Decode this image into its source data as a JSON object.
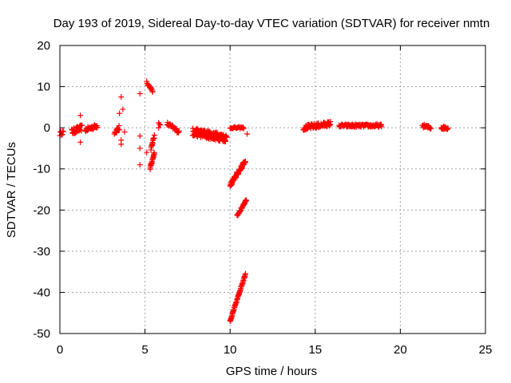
{
  "chart_data": {
    "type": "scatter",
    "title": "Day 193 of 2019, Sidereal Day-to-day VTEC variation (SDTVAR) for receiver nmtn",
    "xlabel": "GPS time / hours",
    "ylabel": "SDTVAR / TECUs",
    "xlim": [
      0,
      25
    ],
    "ylim": [
      -50,
      20
    ],
    "xticks": [
      0,
      5,
      10,
      15,
      20,
      25
    ],
    "yticks": [
      -50,
      -40,
      -30,
      -20,
      -10,
      0,
      10,
      20
    ],
    "xtick_labels": [
      "0",
      "5",
      "10",
      "15",
      "20",
      "25"
    ],
    "ytick_labels": [
      "-50",
      "-40",
      "-30",
      "-20",
      "-10",
      "0",
      "10",
      "20"
    ],
    "grid": true,
    "marker": "plus",
    "color": "#ff0000",
    "segments": [
      {
        "x0": 0.0,
        "x1": 0.2,
        "y0": -1.5,
        "y1": -1.0,
        "n": 8,
        "jitter": 1.0
      },
      {
        "x0": 0.7,
        "x1": 1.3,
        "y0": -1.0,
        "y1": 0.0,
        "n": 30,
        "jitter": 1.5
      },
      {
        "x0": 1.5,
        "x1": 2.2,
        "y0": -0.5,
        "y1": 0.5,
        "n": 30,
        "jitter": 1.0
      },
      {
        "x0": 3.2,
        "x1": 3.5,
        "y0": -1.0,
        "y1": 0.0,
        "n": 12,
        "jitter": 1.5
      },
      {
        "x0": 5.3,
        "x1": 5.55,
        "y0": -10.0,
        "y1": -6.0,
        "n": 20,
        "jitter": 0.8
      },
      {
        "x0": 5.35,
        "x1": 5.55,
        "y0": -5.0,
        "y1": -2.0,
        "n": 15,
        "jitter": 0.8
      },
      {
        "x0": 5.1,
        "x1": 5.45,
        "y0": 11.0,
        "y1": 9.0,
        "n": 15,
        "jitter": 0.6
      },
      {
        "x0": 5.8,
        "x1": 5.9,
        "y0": 1.0,
        "y1": 0.5,
        "n": 3,
        "jitter": 0.5
      },
      {
        "x0": 6.3,
        "x1": 7.0,
        "y0": 1.0,
        "y1": -1.0,
        "n": 25,
        "jitter": 1.0
      },
      {
        "x0": 7.8,
        "x1": 9.8,
        "y0": -1.0,
        "y1": -2.5,
        "n": 140,
        "jitter": 2.0
      },
      {
        "x0": 10.0,
        "x1": 10.8,
        "y0": 0.0,
        "y1": 0.0,
        "n": 20,
        "jitter": 0.4
      },
      {
        "x0": 10.0,
        "x1": 10.9,
        "y0": -14.0,
        "y1": -8.0,
        "n": 60,
        "jitter": 1.0
      },
      {
        "x0": 10.4,
        "x1": 10.95,
        "y0": -21.5,
        "y1": -17.5,
        "n": 30,
        "jitter": 0.6
      },
      {
        "x0": 10.0,
        "x1": 10.9,
        "y0": -47.0,
        "y1": -35.5,
        "n": 60,
        "jitter": 0.4
      },
      {
        "x0": 14.3,
        "x1": 15.9,
        "y0": 0.0,
        "y1": 1.0,
        "n": 70,
        "jitter": 1.2
      },
      {
        "x0": 16.4,
        "x1": 18.9,
        "y0": 0.5,
        "y1": 0.5,
        "n": 90,
        "jitter": 0.7
      },
      {
        "x0": 21.3,
        "x1": 21.8,
        "y0": 0.5,
        "y1": 0.0,
        "n": 20,
        "jitter": 0.8
      },
      {
        "x0": 22.4,
        "x1": 22.8,
        "y0": 0.0,
        "y1": 0.0,
        "n": 15,
        "jitter": 0.8
      }
    ],
    "points": [
      [
        1.2,
        3.0
      ],
      [
        1.2,
        -3.5
      ],
      [
        3.5,
        3.5
      ],
      [
        3.6,
        -3.0
      ],
      [
        3.6,
        -4.0
      ],
      [
        3.7,
        4.5
      ],
      [
        3.8,
        -1.0
      ],
      [
        3.6,
        7.5
      ],
      [
        4.7,
        8.3
      ],
      [
        4.7,
        -2.0
      ],
      [
        4.7,
        -5.0
      ],
      [
        4.7,
        -9.0
      ],
      [
        5.1,
        -6.0
      ],
      [
        5.8,
        0.0
      ],
      [
        11.0,
        -1.5
      ]
    ]
  }
}
